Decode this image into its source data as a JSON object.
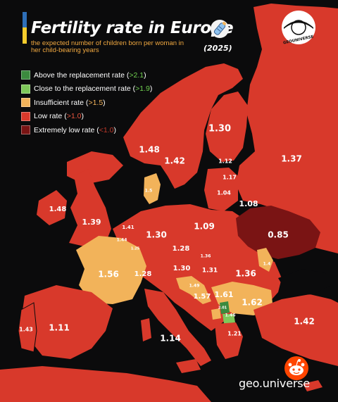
{
  "title": "Fertility rate in Europe",
  "subtitle": "the expected number of children born per woman in her child-bearing years",
  "year": "(2025)",
  "brand_badge_text": "GEOUNIVERSE",
  "watermark": "geo.universe",
  "legend": [
    {
      "label": "Above the replacement rate",
      "threshold": ">2.1",
      "color": "#3b8a3e",
      "threshold_color": "#6fcf4f"
    },
    {
      "label": "Close to the replacement rate",
      "threshold": ">1.9",
      "color": "#7ec85a",
      "threshold_color": "#6fcf4f"
    },
    {
      "label": "Insufficient rate",
      "threshold": ">1.5",
      "color": "#f2b35a",
      "threshold_color": "#f2b35a"
    },
    {
      "label": "Low rate",
      "threshold": ">1.0",
      "color": "#d8392b",
      "threshold_color": "#e8553f"
    },
    {
      "label": "Extremely low rate",
      "threshold": "<1.0",
      "color": "#7a1414",
      "threshold_color": "#c0392b"
    }
  ],
  "colors": {
    "background": "#0b0b0c",
    "stripe_blue": "#2e6fb8",
    "stripe_yellow": "#f4cc2c",
    "low": "#d8392b",
    "extremely_low": "#7a1414",
    "insufficient": "#f2b35a",
    "close_to_replacement": "#7ec85a",
    "above_replacement": "#3b8a3e"
  },
  "icons": {
    "emoji": "baby-bottle-icon",
    "reddit": "reddit-alien-icon"
  },
  "rate_labels": [
    {
      "value": "1.30",
      "category": "low"
    },
    {
      "value": "1.37",
      "category": "low"
    },
    {
      "value": "1.48",
      "category": "low"
    },
    {
      "value": "1.42",
      "category": "low"
    },
    {
      "value": "1.12",
      "category": "low"
    },
    {
      "value": "1.17",
      "category": "low"
    },
    {
      "value": "1.04",
      "category": "low"
    },
    {
      "value": "1.08",
      "category": "low"
    },
    {
      "value": "1.5",
      "category": "insufficient"
    },
    {
      "value": "1.48",
      "category": "low"
    },
    {
      "value": "1.39",
      "category": "low"
    },
    {
      "value": "1.41",
      "category": "low"
    },
    {
      "value": "1.44",
      "category": "low"
    },
    {
      "value": "1.25",
      "category": "low"
    },
    {
      "value": "1.30",
      "category": "low"
    },
    {
      "value": "1.09",
      "category": "low"
    },
    {
      "value": "0.85",
      "category": "extremely_low"
    },
    {
      "value": "1.28",
      "category": "low"
    },
    {
      "value": "1.36",
      "category": "low"
    },
    {
      "value": "1.56",
      "category": "insufficient"
    },
    {
      "value": "1.28",
      "category": "low"
    },
    {
      "value": "1.30",
      "category": "low"
    },
    {
      "value": "1.31",
      "category": "low"
    },
    {
      "value": "1.36",
      "category": "low"
    },
    {
      "value": "1.4",
      "category": "low"
    },
    {
      "value": "1.49",
      "category": "low"
    },
    {
      "value": "1.57",
      "category": "insufficient"
    },
    {
      "value": "1.61",
      "category": "insufficient"
    },
    {
      "value": "1.62",
      "category": "insufficient"
    },
    {
      "value": "2.01",
      "category": "close_to_replacement"
    },
    {
      "value": "1.46",
      "category": "low"
    },
    {
      "value": "1.43",
      "category": "low"
    },
    {
      "value": "1.11",
      "category": "low"
    },
    {
      "value": "1.14",
      "category": "low"
    },
    {
      "value": "1.21",
      "category": "low"
    },
    {
      "value": "1.42",
      "category": "low"
    }
  ]
}
